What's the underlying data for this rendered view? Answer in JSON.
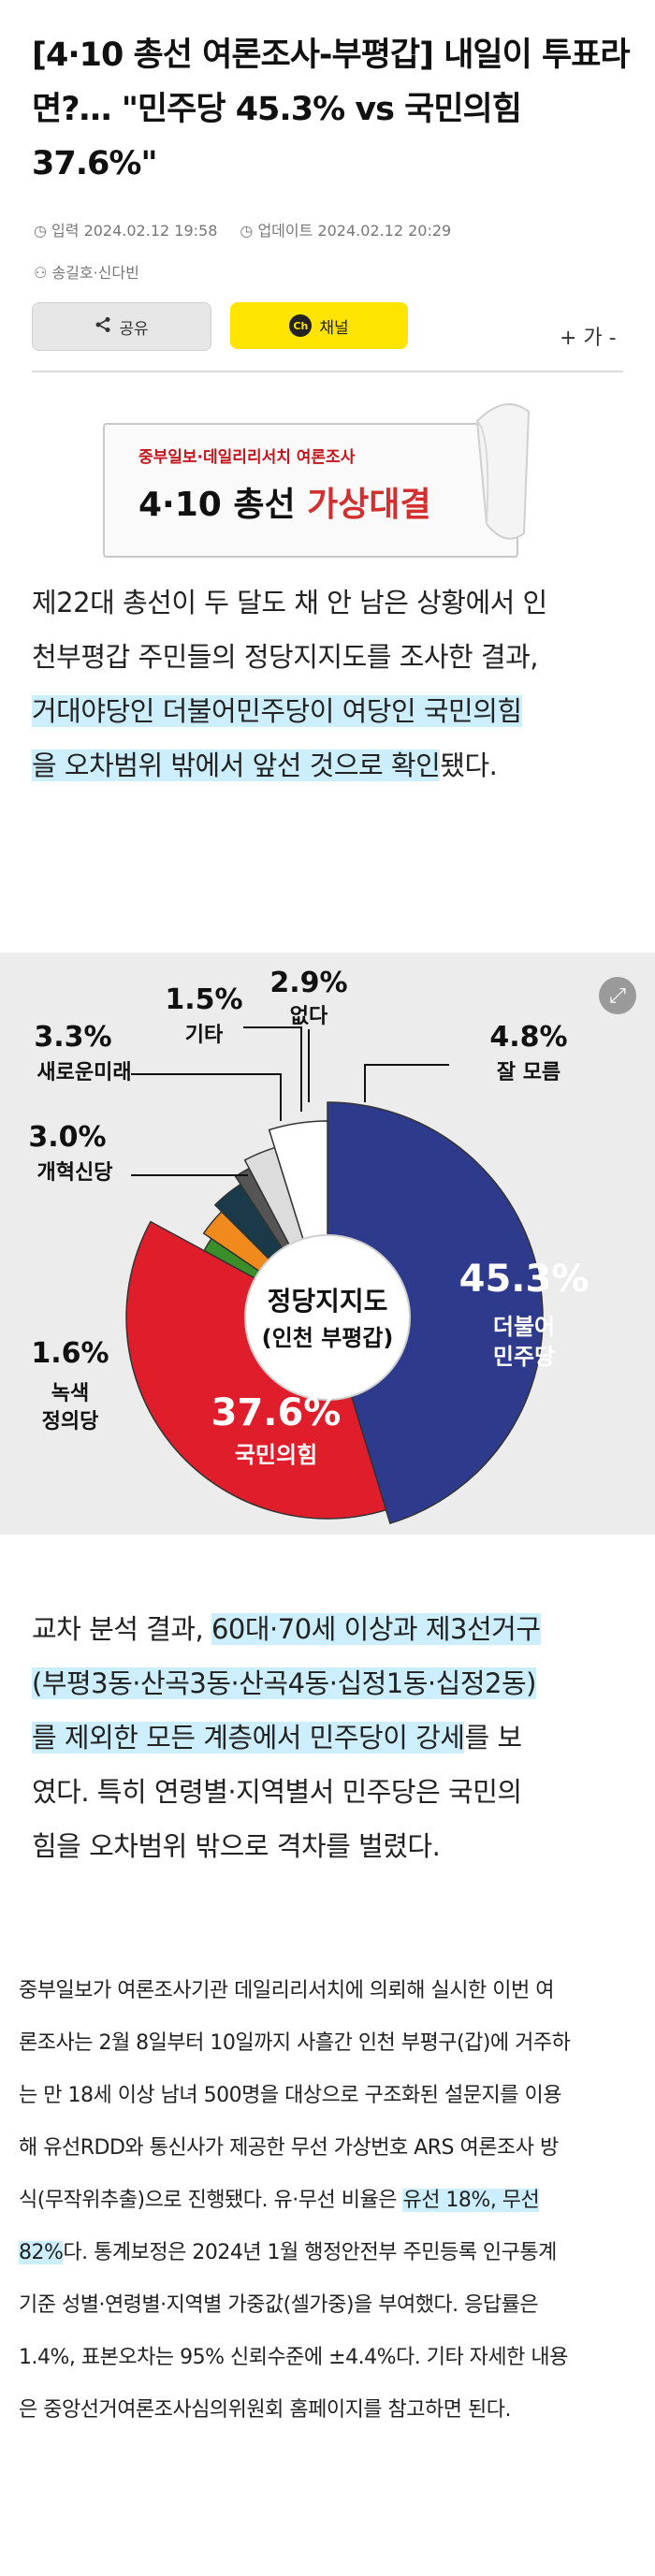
{
  "article": {
    "title": "[4·10 총선 여론조사-부평갑] 내일이 투표라면?… \"민주당 45.3% vs 국민의힘 37.6%\"",
    "published": "입력 2024.02.12 19:58",
    "updated": "업데이트 2024.02.12 20:29",
    "author": "송길호·신다빈",
    "share_label": "공유",
    "channel_label": "채널",
    "channel_badge": "Ch",
    "font_size_label": "+ 가 -"
  },
  "banner": {
    "subtitle": "중부일보·데일리리서치 여론조사",
    "title_main": "4·10 총선 ",
    "title_red": "가상대결"
  },
  "para1": {
    "l1": "제22대 총선이 두 달도 채 안 남은 상황에서 인",
    "l2": "천부평갑 주민들의 정당지지도를 조사한 결과,",
    "l3": "거대야당인 더불어민주당이 여당인 국민의힘",
    "l4a": "을 오차범위 밖에서 앞선 것으로 확인",
    "l4b": "됐다."
  },
  "chart_data": {
    "type": "pie",
    "title": "정당지지도",
    "subtitle": "(인천 부평갑)",
    "slices": [
      {
        "label": "더불어 민주당",
        "value": 45.3,
        "value_label": "45.3%",
        "color": "#2e3a8c"
      },
      {
        "label": "국민의힘",
        "value": 37.6,
        "value_label": "37.6%",
        "color": "#e01e2b"
      },
      {
        "label": "녹색 정의당",
        "value": 1.6,
        "value_label": "1.6%",
        "color": "#3a8f2a"
      },
      {
        "label": "개혁신당",
        "value": 3.0,
        "value_label": "3.0%",
        "color": "#f08a1c"
      },
      {
        "label": "새로운미래",
        "value": 3.3,
        "value_label": "3.3%",
        "color": "#1a3a4a"
      },
      {
        "label": "기타",
        "value": 1.5,
        "value_label": "1.5%",
        "color": "#555555"
      },
      {
        "label": "없다",
        "value": 2.9,
        "value_label": "2.9%",
        "color": "#dcdcdc"
      },
      {
        "label": "잘 모름",
        "value": 4.8,
        "value_label": "4.8%",
        "color": "#ffffff"
      }
    ],
    "labels": {
      "minjoo_value": "45.3%",
      "minjoo_name1": "더불어",
      "minjoo_name2": "민주당",
      "ppp_value": "37.6%",
      "ppp_name": "국민의힘",
      "green_value": "1.6%",
      "green_name1": "녹색",
      "green_name2": "정의당",
      "reform_value": "3.0%",
      "reform_name": "개혁신당",
      "newfuture_value": "3.3%",
      "newfuture_name": "새로운미래",
      "etc_value": "1.5%",
      "etc_name": "기타",
      "none_value": "2.9%",
      "none_name": "없다",
      "unknown_value": "4.8%",
      "unknown_name": "잘 모름"
    }
  },
  "para2": {
    "l1a": "교차 분석 결과, ",
    "l1b": "60대·70세 이상과 제3선거구",
    "l2": "(부평3동·산곡3동·산곡4동·십정1동·십정2동)",
    "l3a": "를 제외한 모든 계층에서 민주당이 강세",
    "l3b": "를 보",
    "l4": "였다. 특히 연령별·지역별서 민주당은 국민의",
    "l5": "힘을 오차범위 밖으로 격차를 벌렸다."
  },
  "para3": {
    "l1": "중부일보가 여론조사기관 데일리리서치에 의뢰해 실시한 이번 여",
    "l2": "론조사는 2월 8일부터 10일까지 사흘간 인천 부평구(갑)에 거주하",
    "l3": "는 만 18세 이상 남녀 500명을 대상으로 구조화된 설문지를 이용",
    "l4": "해 유선RDD와 통신사가 제공한 무선 가상번호 ARS 여론조사 방",
    "l5a": "식(무작위추출)으로 진행됐다. 유·무선 비율은 ",
    "l5b": "유선 18%, 무선",
    "l6a": "82%",
    "l6b": "다. 통계보정은 2024년 1월 행정안전부 주민등록 인구통계",
    "l7": "기준 성별·연령별·지역별 가중값(셀가중)을 부여했다. 응답률은",
    "l8": "1.4%, 표본오차는 95% 신뢰수준에 ±4.4%다. 기타 자세한 내용",
    "l9": "은 중앙선거여론조사심의위원회 홈페이지를 참고하면 된다."
  }
}
